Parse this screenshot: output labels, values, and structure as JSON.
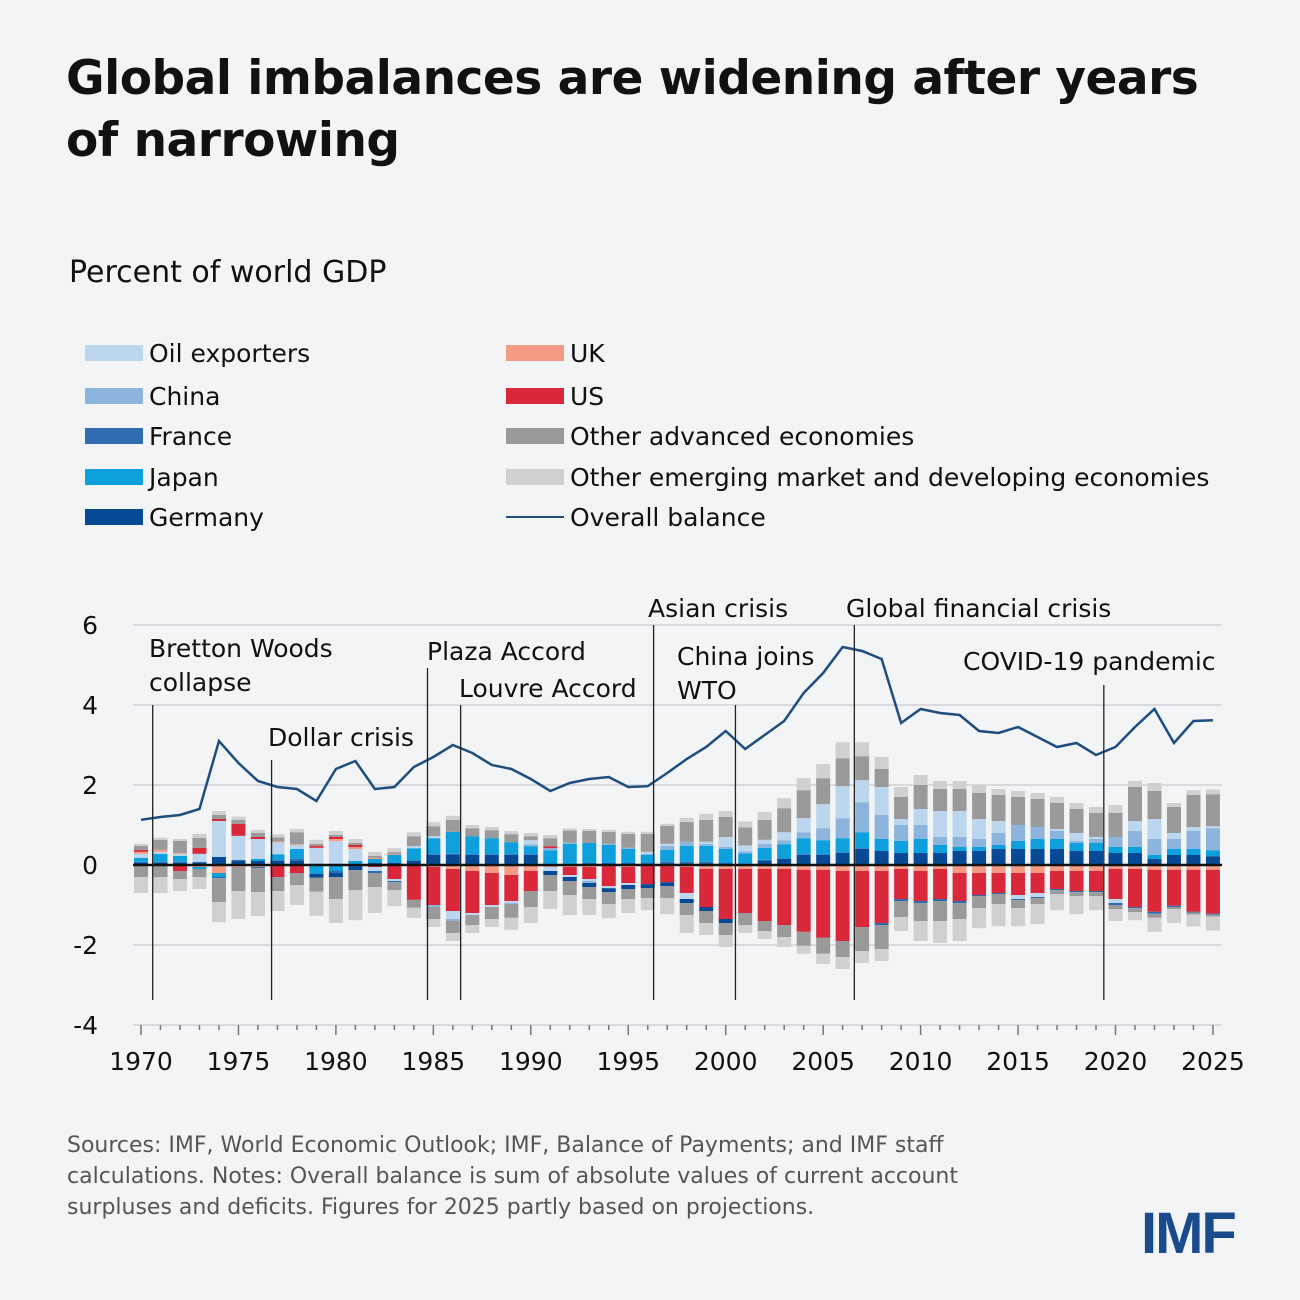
{
  "title": "Global imbalances are widening after years of narrowing",
  "subtitle": "Percent of world GDP",
  "footer": "Sources: IMF, World Economic Outlook; IMF, Balance of Payments; and IMF staff calculations. Notes: Overall balance is sum of absolute values of current account surpluses and deficits. Figures for 2025 partly based on projections.",
  "logo": "IMF",
  "legend": [
    {
      "label": "Oil exporters",
      "color": "#bcd6ee",
      "type": "bar"
    },
    {
      "label": "China",
      "color": "#8db4dd",
      "type": "bar"
    },
    {
      "label": "France",
      "color": "#2f6db2",
      "type": "bar"
    },
    {
      "label": "Japan",
      "color": "#0ea0dc",
      "type": "bar"
    },
    {
      "label": "Germany",
      "color": "#064a96",
      "type": "bar"
    },
    {
      "label": "UK",
      "color": "#f49a85",
      "type": "bar"
    },
    {
      "label": "US",
      "color": "#d8283a",
      "type": "bar"
    },
    {
      "label": "Other advanced economies",
      "color": "#9a9a9a",
      "type": "bar"
    },
    {
      "label": "Other emerging market and developing economies",
      "color": "#d0d0d0",
      "type": "bar"
    },
    {
      "label": "Overall balance",
      "color": "#1d4e7e",
      "type": "line"
    }
  ],
  "chart_data": {
    "type": "bar",
    "stacked": true,
    "ylim": [
      -4,
      6
    ],
    "yticks": [
      -4,
      -2,
      0,
      2,
      4,
      6
    ],
    "xticks": [
      1970,
      1975,
      1980,
      1985,
      1990,
      1995,
      2000,
      2005,
      2010,
      2015,
      2020,
      2025
    ],
    "grid": true,
    "legend_placement": "top",
    "x": [
      1970,
      1971,
      1972,
      1973,
      1974,
      1975,
      1976,
      1977,
      1978,
      1979,
      1980,
      1981,
      1982,
      1983,
      1984,
      1985,
      1986,
      1987,
      1988,
      1989,
      1990,
      1991,
      1992,
      1993,
      1994,
      1995,
      1996,
      1997,
      1998,
      1999,
      2000,
      2001,
      2002,
      2003,
      2004,
      2005,
      2006,
      2007,
      2008,
      2009,
      2010,
      2011,
      2012,
      2013,
      2014,
      2015,
      2016,
      2017,
      2018,
      2019,
      2020,
      2021,
      2022,
      2023,
      2024,
      2025
    ],
    "series": [
      {
        "name": "Germany",
        "color": "#064a96",
        "values": [
          0.05,
          0.05,
          0.05,
          0.05,
          0.2,
          0.1,
          0.1,
          0.1,
          0.1,
          -0.1,
          -0.1,
          -0.1,
          0.05,
          0.05,
          0.1,
          0.25,
          0.25,
          0.25,
          0.25,
          0.25,
          0.25,
          -0.1,
          -0.1,
          -0.1,
          -0.1,
          -0.1,
          -0.1,
          -0.1,
          -0.1,
          -0.1,
          -0.1,
          0,
          0.1,
          0.15,
          0.25,
          0.25,
          0.3,
          0.4,
          0.35,
          0.3,
          0.3,
          0.3,
          0.35,
          0.35,
          0.4,
          0.4,
          0.4,
          0.4,
          0.35,
          0.35,
          0.3,
          0.3,
          0.15,
          0.25,
          0.25,
          0.22
        ]
      },
      {
        "name": "France",
        "color": "#2f6db2",
        "values": [
          0.03,
          0.03,
          0.03,
          0.03,
          -0.03,
          0.03,
          -0.03,
          0.02,
          0.05,
          0.03,
          -0.05,
          -0.03,
          -0.05,
          -0.03,
          0.02,
          0.02,
          0.03,
          0.02,
          0.02,
          0.02,
          0.02,
          0.02,
          0.03,
          0.05,
          0.05,
          0.05,
          0.05,
          0.08,
          0.08,
          0.08,
          0.05,
          0.04,
          0.03,
          0.02,
          0.02,
          0.02,
          0.02,
          0.02,
          -0.05,
          -0.05,
          -0.05,
          -0.05,
          -0.05,
          -0.03,
          -0.03,
          -0.03,
          -0.03,
          -0.03,
          -0.03,
          -0.03,
          -0.05,
          -0.03,
          -0.05,
          -0.03,
          -0.02,
          -0.02
        ]
      },
      {
        "name": "Japan",
        "color": "#0ea0dc",
        "values": [
          0.1,
          0.2,
          0.15,
          -0.05,
          -0.1,
          0,
          0.05,
          0.15,
          0.25,
          -0.2,
          -0.15,
          0.1,
          0.1,
          0.2,
          0.3,
          0.4,
          0.55,
          0.45,
          0.4,
          0.3,
          0.2,
          0.35,
          0.5,
          0.5,
          0.45,
          0.35,
          0.2,
          0.3,
          0.4,
          0.4,
          0.35,
          0.25,
          0.3,
          0.35,
          0.4,
          0.35,
          0.35,
          0.4,
          0.3,
          0.3,
          0.35,
          0.2,
          0.1,
          0.1,
          0.1,
          0.2,
          0.25,
          0.25,
          0.2,
          0.2,
          0.15,
          0.15,
          0.1,
          0.15,
          0.15,
          0.15
        ]
      },
      {
        "name": "China",
        "color": "#8db4dd",
        "values": [
          0,
          0,
          0,
          0,
          0,
          0,
          0,
          0,
          0,
          0,
          0,
          0,
          0,
          0,
          0,
          -0.05,
          -0.05,
          0,
          0,
          -0.02,
          0.05,
          0.05,
          0.03,
          -0.05,
          0.03,
          0.03,
          0.03,
          0.1,
          0.1,
          0.05,
          0.05,
          0.05,
          0.1,
          0.1,
          0.15,
          0.3,
          0.5,
          0.75,
          0.6,
          0.4,
          0.35,
          0.2,
          0.25,
          0.2,
          0.3,
          0.4,
          0.3,
          0.2,
          0.05,
          0.1,
          0.25,
          0.4,
          0.4,
          0.25,
          0.45,
          0.55
        ]
      },
      {
        "name": "Oil exporters",
        "color": "#bcd6ee",
        "values": [
          0.1,
          0.05,
          0.05,
          0.2,
          0.9,
          0.6,
          0.5,
          0.3,
          0.1,
          0.4,
          0.6,
          0.3,
          -0.1,
          -0.05,
          0.05,
          0.05,
          -0.2,
          -0.05,
          -0.05,
          -0.05,
          0.1,
          -0.1,
          -0.05,
          -0.05,
          -0.05,
          -0.05,
          0.05,
          0.05,
          -0.15,
          0.05,
          0.25,
          0.15,
          0.1,
          0.2,
          0.35,
          0.6,
          0.8,
          0.55,
          0.7,
          0.15,
          0.4,
          0.65,
          0.65,
          0.5,
          0.3,
          -0.1,
          -0.1,
          0.05,
          0.2,
          0.05,
          -0.1,
          0.25,
          0.5,
          0.15,
          0.1,
          0.05
        ]
      },
      {
        "name": "UK",
        "color": "#f49a85",
        "values": [
          0.05,
          0.05,
          0.02,
          -0.05,
          -0.2,
          -0.05,
          -0.05,
          0.02,
          0.02,
          -0.02,
          0.05,
          0.05,
          0.03,
          0.02,
          -0.02,
          -0.05,
          -0.1,
          -0.15,
          -0.2,
          -0.25,
          -0.15,
          -0.05,
          -0.05,
          -0.05,
          -0.03,
          -0.05,
          -0.03,
          -0.03,
          -0.05,
          -0.1,
          -0.1,
          -0.1,
          -0.1,
          -0.1,
          -0.12,
          -0.12,
          -0.15,
          -0.15,
          -0.15,
          -0.1,
          -0.15,
          -0.1,
          -0.2,
          -0.2,
          -0.2,
          -0.2,
          -0.2,
          -0.15,
          -0.15,
          -0.15,
          -0.1,
          -0.1,
          -0.12,
          -0.12,
          -0.12,
          -0.12
        ]
      },
      {
        "name": "US",
        "color": "#d8283a",
        "values": [
          0.05,
          0,
          -0.15,
          0.15,
          0.05,
          0.3,
          0.05,
          -0.3,
          -0.2,
          0.05,
          0.05,
          0.05,
          -0.05,
          -0.35,
          -0.85,
          -0.95,
          -1.05,
          -1.05,
          -0.8,
          -0.65,
          -0.5,
          0.05,
          -0.2,
          -0.3,
          -0.5,
          -0.4,
          -0.45,
          -0.4,
          -0.65,
          -0.95,
          -1.25,
          -1.1,
          -1.3,
          -1.4,
          -1.55,
          -1.7,
          -1.75,
          -1.4,
          -1.3,
          -0.75,
          -0.75,
          -0.75,
          -0.7,
          -0.55,
          -0.5,
          -0.55,
          -0.5,
          -0.45,
          -0.5,
          -0.5,
          -0.75,
          -0.95,
          -1.05,
          -0.9,
          -1.05,
          -1.1
        ]
      },
      {
        "name": "Other advanced economies",
        "color": "#9a9a9a",
        "values": [
          0.1,
          0.25,
          0.3,
          0.25,
          0.1,
          0.1,
          0.1,
          0.1,
          0.3,
          0.05,
          0.05,
          0.05,
          0.05,
          0.05,
          0.25,
          0.25,
          0.3,
          0.2,
          0.2,
          0.2,
          0.1,
          0.2,
          0.3,
          0.3,
          0.3,
          0.35,
          0.45,
          0.45,
          0.5,
          0.55,
          0.5,
          0.45,
          0.5,
          0.6,
          0.7,
          0.65,
          0.7,
          0.6,
          0.45,
          0.55,
          0.6,
          0.55,
          0.55,
          0.65,
          0.65,
          0.7,
          0.7,
          0.65,
          0.6,
          0.6,
          0.6,
          0.85,
          0.7,
          0.65,
          0.8,
          0.8
        ],
        "deficit_values": [
          -0.3,
          -0.3,
          -0.2,
          -0.2,
          -0.6,
          -0.6,
          -0.6,
          -0.35,
          -0.3,
          -0.35,
          -0.55,
          -0.5,
          -0.35,
          -0.2,
          -0.2,
          -0.3,
          -0.3,
          -0.25,
          -0.3,
          -0.35,
          -0.4,
          -0.4,
          -0.35,
          -0.3,
          -0.3,
          -0.25,
          -0.25,
          -0.3,
          -0.3,
          -0.3,
          -0.3,
          -0.3,
          -0.25,
          -0.3,
          -0.35,
          -0.4,
          -0.4,
          -0.6,
          -0.6,
          -0.4,
          -0.45,
          -0.5,
          -0.4,
          -0.3,
          -0.25,
          -0.2,
          -0.15,
          -0.1,
          -0.1,
          -0.1,
          -0.1,
          -0.1,
          -0.1,
          -0.05,
          -0.05,
          -0.05
        ]
      },
      {
        "name": "Other emerging market and developing economies",
        "color": "#d0d0d0",
        "values": [
          0.05,
          0.05,
          0.05,
          0.1,
          0.1,
          0.08,
          0.08,
          0.08,
          0.08,
          0.1,
          0.1,
          0.1,
          0.1,
          0.1,
          0.1,
          0.1,
          0.1,
          0.08,
          0.08,
          0.08,
          0.08,
          0.08,
          0.05,
          0.05,
          0.05,
          0.05,
          0.05,
          0.05,
          0.1,
          0.15,
          0.15,
          0.15,
          0.2,
          0.25,
          0.3,
          0.35,
          0.4,
          0.35,
          0.3,
          0.25,
          0.25,
          0.2,
          0.2,
          0.2,
          0.15,
          0.15,
          0.15,
          0.15,
          0.15,
          0.15,
          0.2,
          0.15,
          0.2,
          0.1,
          0.12,
          0.12
        ],
        "deficit_values": [
          -0.4,
          -0.4,
          -0.3,
          -0.3,
          -0.5,
          -0.7,
          -0.6,
          -0.5,
          -0.5,
          -0.6,
          -0.6,
          -0.75,
          -0.65,
          -0.4,
          -0.25,
          -0.2,
          -0.2,
          -0.2,
          -0.2,
          -0.3,
          -0.4,
          -0.45,
          -0.5,
          -0.4,
          -0.35,
          -0.35,
          -0.3,
          -0.4,
          -0.45,
          -0.3,
          -0.3,
          -0.2,
          -0.2,
          -0.25,
          -0.2,
          -0.25,
          -0.3,
          -0.3,
          -0.3,
          -0.35,
          -0.5,
          -0.55,
          -0.55,
          -0.5,
          -0.55,
          -0.45,
          -0.5,
          -0.4,
          -0.45,
          -0.35,
          -0.3,
          -0.2,
          -0.35,
          -0.35,
          -0.3,
          -0.35
        ]
      },
      {
        "name": "Overall balance",
        "type": "line",
        "color": "#1d4e7e",
        "values": [
          1.13,
          1.2,
          1.25,
          1.4,
          3.1,
          2.55,
          2.1,
          1.95,
          1.9,
          1.6,
          2.4,
          2.6,
          1.9,
          1.95,
          2.45,
          2.7,
          3.0,
          2.8,
          2.5,
          2.4,
          2.15,
          1.85,
          2.05,
          2.15,
          2.2,
          1.95,
          1.97,
          2.3,
          2.65,
          2.95,
          3.35,
          2.9,
          3.25,
          3.6,
          4.3,
          4.8,
          5.45,
          5.35,
          5.15,
          3.55,
          3.9,
          3.8,
          3.75,
          3.35,
          3.3,
          3.45,
          3.2,
          2.95,
          3.05,
          2.75,
          2.95,
          3.45,
          3.9,
          3.05,
          3.6,
          3.62
        ]
      }
    ],
    "annotations": [
      {
        "year": 1970.6,
        "lines": [
          "Bretton Woods",
          "collapse"
        ]
      },
      {
        "year": 1976.7,
        "lines": [
          "Dollar crisis"
        ]
      },
      {
        "year": 1984.7,
        "lines": [
          "Plaza Accord"
        ]
      },
      {
        "year": 1986.4,
        "lines": [
          "Louvre Accord"
        ]
      },
      {
        "year": 1996.3,
        "lines": [
          "Asian crisis"
        ]
      },
      {
        "year": 2000.5,
        "lines": [
          "China joins",
          "WTO"
        ]
      },
      {
        "year": 2006.6,
        "lines": [
          "Global financial crisis"
        ]
      },
      {
        "year": 2019.4,
        "lines": [
          "COVID-19 pandemic"
        ]
      }
    ]
  }
}
